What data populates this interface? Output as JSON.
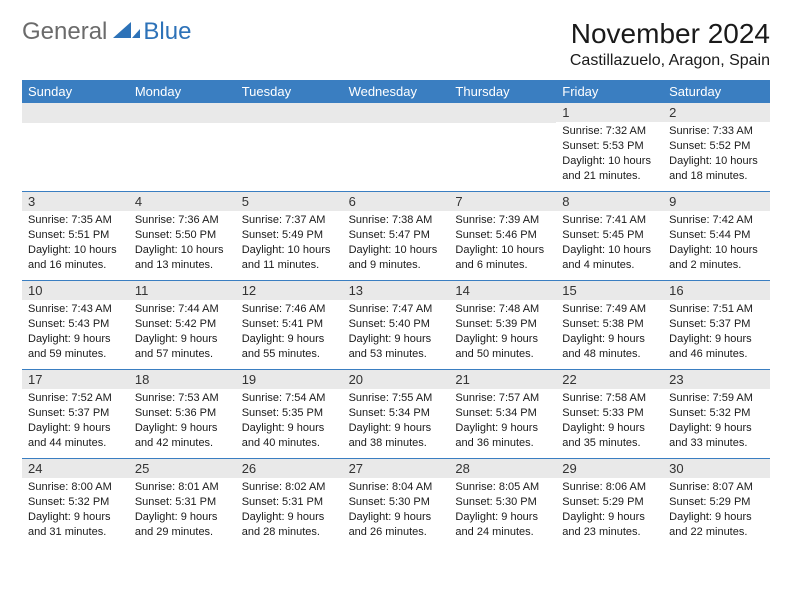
{
  "brand": {
    "general": "General",
    "blue": "Blue"
  },
  "title": "November 2024",
  "location": "Castillazuelo, Aragon, Spain",
  "colors": {
    "header_bg": "#3a7ec1",
    "header_text": "#ffffff",
    "daynum_bg": "#e9e9e9",
    "divider": "#3a7ec1",
    "body_text": "#1a1a1a",
    "logo_gray": "#6b6b6b",
    "logo_blue": "#2d72b8"
  },
  "day_labels": [
    "Sunday",
    "Monday",
    "Tuesday",
    "Wednesday",
    "Thursday",
    "Friday",
    "Saturday"
  ],
  "weeks": [
    [
      null,
      null,
      null,
      null,
      null,
      {
        "n": "1",
        "sr": "Sunrise: 7:32 AM",
        "ss": "Sunset: 5:53 PM",
        "dl": "Daylight: 10 hours and 21 minutes."
      },
      {
        "n": "2",
        "sr": "Sunrise: 7:33 AM",
        "ss": "Sunset: 5:52 PM",
        "dl": "Daylight: 10 hours and 18 minutes."
      }
    ],
    [
      {
        "n": "3",
        "sr": "Sunrise: 7:35 AM",
        "ss": "Sunset: 5:51 PM",
        "dl": "Daylight: 10 hours and 16 minutes."
      },
      {
        "n": "4",
        "sr": "Sunrise: 7:36 AM",
        "ss": "Sunset: 5:50 PM",
        "dl": "Daylight: 10 hours and 13 minutes."
      },
      {
        "n": "5",
        "sr": "Sunrise: 7:37 AM",
        "ss": "Sunset: 5:49 PM",
        "dl": "Daylight: 10 hours and 11 minutes."
      },
      {
        "n": "6",
        "sr": "Sunrise: 7:38 AM",
        "ss": "Sunset: 5:47 PM",
        "dl": "Daylight: 10 hours and 9 minutes."
      },
      {
        "n": "7",
        "sr": "Sunrise: 7:39 AM",
        "ss": "Sunset: 5:46 PM",
        "dl": "Daylight: 10 hours and 6 minutes."
      },
      {
        "n": "8",
        "sr": "Sunrise: 7:41 AM",
        "ss": "Sunset: 5:45 PM",
        "dl": "Daylight: 10 hours and 4 minutes."
      },
      {
        "n": "9",
        "sr": "Sunrise: 7:42 AM",
        "ss": "Sunset: 5:44 PM",
        "dl": "Daylight: 10 hours and 2 minutes."
      }
    ],
    [
      {
        "n": "10",
        "sr": "Sunrise: 7:43 AM",
        "ss": "Sunset: 5:43 PM",
        "dl": "Daylight: 9 hours and 59 minutes."
      },
      {
        "n": "11",
        "sr": "Sunrise: 7:44 AM",
        "ss": "Sunset: 5:42 PM",
        "dl": "Daylight: 9 hours and 57 minutes."
      },
      {
        "n": "12",
        "sr": "Sunrise: 7:46 AM",
        "ss": "Sunset: 5:41 PM",
        "dl": "Daylight: 9 hours and 55 minutes."
      },
      {
        "n": "13",
        "sr": "Sunrise: 7:47 AM",
        "ss": "Sunset: 5:40 PM",
        "dl": "Daylight: 9 hours and 53 minutes."
      },
      {
        "n": "14",
        "sr": "Sunrise: 7:48 AM",
        "ss": "Sunset: 5:39 PM",
        "dl": "Daylight: 9 hours and 50 minutes."
      },
      {
        "n": "15",
        "sr": "Sunrise: 7:49 AM",
        "ss": "Sunset: 5:38 PM",
        "dl": "Daylight: 9 hours and 48 minutes."
      },
      {
        "n": "16",
        "sr": "Sunrise: 7:51 AM",
        "ss": "Sunset: 5:37 PM",
        "dl": "Daylight: 9 hours and 46 minutes."
      }
    ],
    [
      {
        "n": "17",
        "sr": "Sunrise: 7:52 AM",
        "ss": "Sunset: 5:37 PM",
        "dl": "Daylight: 9 hours and 44 minutes."
      },
      {
        "n": "18",
        "sr": "Sunrise: 7:53 AM",
        "ss": "Sunset: 5:36 PM",
        "dl": "Daylight: 9 hours and 42 minutes."
      },
      {
        "n": "19",
        "sr": "Sunrise: 7:54 AM",
        "ss": "Sunset: 5:35 PM",
        "dl": "Daylight: 9 hours and 40 minutes."
      },
      {
        "n": "20",
        "sr": "Sunrise: 7:55 AM",
        "ss": "Sunset: 5:34 PM",
        "dl": "Daylight: 9 hours and 38 minutes."
      },
      {
        "n": "21",
        "sr": "Sunrise: 7:57 AM",
        "ss": "Sunset: 5:34 PM",
        "dl": "Daylight: 9 hours and 36 minutes."
      },
      {
        "n": "22",
        "sr": "Sunrise: 7:58 AM",
        "ss": "Sunset: 5:33 PM",
        "dl": "Daylight: 9 hours and 35 minutes."
      },
      {
        "n": "23",
        "sr": "Sunrise: 7:59 AM",
        "ss": "Sunset: 5:32 PM",
        "dl": "Daylight: 9 hours and 33 minutes."
      }
    ],
    [
      {
        "n": "24",
        "sr": "Sunrise: 8:00 AM",
        "ss": "Sunset: 5:32 PM",
        "dl": "Daylight: 9 hours and 31 minutes."
      },
      {
        "n": "25",
        "sr": "Sunrise: 8:01 AM",
        "ss": "Sunset: 5:31 PM",
        "dl": "Daylight: 9 hours and 29 minutes."
      },
      {
        "n": "26",
        "sr": "Sunrise: 8:02 AM",
        "ss": "Sunset: 5:31 PM",
        "dl": "Daylight: 9 hours and 28 minutes."
      },
      {
        "n": "27",
        "sr": "Sunrise: 8:04 AM",
        "ss": "Sunset: 5:30 PM",
        "dl": "Daylight: 9 hours and 26 minutes."
      },
      {
        "n": "28",
        "sr": "Sunrise: 8:05 AM",
        "ss": "Sunset: 5:30 PM",
        "dl": "Daylight: 9 hours and 24 minutes."
      },
      {
        "n": "29",
        "sr": "Sunrise: 8:06 AM",
        "ss": "Sunset: 5:29 PM",
        "dl": "Daylight: 9 hours and 23 minutes."
      },
      {
        "n": "30",
        "sr": "Sunrise: 8:07 AM",
        "ss": "Sunset: 5:29 PM",
        "dl": "Daylight: 9 hours and 22 minutes."
      }
    ]
  ]
}
